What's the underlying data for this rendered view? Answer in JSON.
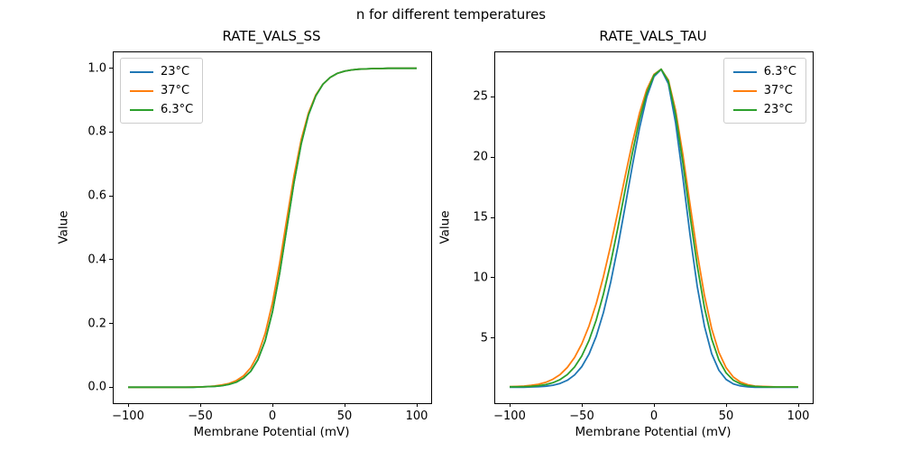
{
  "figure": {
    "suptitle": "n for different temperatures",
    "background": "#ffffff",
    "text_color": "#000000",
    "spine_color": "#000000"
  },
  "chart_data": [
    {
      "type": "line",
      "title": "RATE_VALS_SS",
      "xlabel": "Membrane Potential (mV)",
      "ylabel": "Value",
      "xlim": [
        -110,
        110
      ],
      "ylim": [
        -0.05,
        1.05
      ],
      "grid": false,
      "legend_position": "upper-left",
      "xticks": [
        -100,
        -50,
        0,
        50,
        100
      ],
      "xtick_labels": [
        "−100",
        "−50",
        "0",
        "50",
        "100"
      ],
      "yticks": [
        0.0,
        0.2,
        0.4,
        0.6,
        0.8,
        1.0
      ],
      "ytick_labels": [
        "0.0",
        "0.2",
        "0.4",
        "0.6",
        "0.8",
        "1.0"
      ],
      "x": [
        -100,
        -95,
        -90,
        -85,
        -80,
        -75,
        -70,
        -65,
        -60,
        -55,
        -50,
        -45,
        -40,
        -35,
        -30,
        -25,
        -20,
        -15,
        -10,
        -5,
        0,
        5,
        10,
        15,
        20,
        25,
        30,
        35,
        40,
        45,
        50,
        55,
        60,
        65,
        70,
        75,
        80,
        85,
        90,
        95,
        100
      ],
      "series": [
        {
          "name": "23°C",
          "color": "#1f77b4",
          "values": [
            0,
            0,
            0,
            0,
            0,
            0,
            0,
            0,
            0,
            0,
            0.001,
            0.002,
            0.003,
            0.005,
            0.009,
            0.016,
            0.029,
            0.05,
            0.087,
            0.146,
            0.236,
            0.357,
            0.5,
            0.643,
            0.764,
            0.854,
            0.913,
            0.95,
            0.971,
            0.984,
            0.991,
            0.995,
            0.997,
            0.998,
            0.999,
            0.999,
            1,
            1,
            1,
            1,
            1
          ]
        },
        {
          "name": "37°C",
          "color": "#ff7f0e",
          "values": [
            0,
            0,
            0,
            0,
            0,
            0,
            0,
            0,
            0,
            0.001,
            0.001,
            0.002,
            0.004,
            0.007,
            0.012,
            0.021,
            0.036,
            0.061,
            0.103,
            0.169,
            0.264,
            0.388,
            0.528,
            0.664,
            0.777,
            0.86,
            0.916,
            0.95,
            0.971,
            0.984,
            0.991,
            0.995,
            0.997,
            0.998,
            0.999,
            0.999,
            1,
            1,
            1,
            1,
            1
          ]
        },
        {
          "name": "6.3°C",
          "color": "#2ca02c",
          "values": [
            0,
            0,
            0,
            0,
            0,
            0,
            0,
            0,
            0,
            0,
            0.001,
            0.002,
            0.003,
            0.005,
            0.009,
            0.016,
            0.029,
            0.05,
            0.087,
            0.146,
            0.236,
            0.357,
            0.5,
            0.643,
            0.764,
            0.854,
            0.913,
            0.95,
            0.971,
            0.984,
            0.991,
            0.995,
            0.997,
            0.998,
            0.999,
            0.999,
            1,
            1,
            1,
            1,
            1
          ]
        }
      ]
    },
    {
      "type": "line",
      "title": "RATE_VALS_TAU",
      "xlabel": "Membrane Potential (mV)",
      "ylabel": "Value",
      "xlim": [
        -110,
        110
      ],
      "ylim": [
        -0.4,
        28.7
      ],
      "grid": false,
      "legend_position": "upper-right",
      "xticks": [
        -100,
        -50,
        0,
        50,
        100
      ],
      "xtick_labels": [
        "−100",
        "−50",
        "0",
        "50",
        "100"
      ],
      "yticks": [
        5,
        10,
        15,
        20,
        25
      ],
      "ytick_labels": [
        "5",
        "10",
        "15",
        "20",
        "25"
      ],
      "x": [
        -100,
        -95,
        -90,
        -85,
        -80,
        -75,
        -70,
        -65,
        -60,
        -55,
        -50,
        -45,
        -40,
        -35,
        -30,
        -25,
        -20,
        -15,
        -10,
        -5,
        0,
        5,
        10,
        15,
        20,
        25,
        30,
        35,
        40,
        45,
        50,
        55,
        60,
        65,
        70,
        75,
        80,
        85,
        90,
        95,
        100
      ],
      "series": [
        {
          "name": "6.3°C",
          "color": "#1f77b4",
          "values": [
            0.92,
            0.92,
            0.92,
            0.95,
            0.97,
            1.01,
            1.09,
            1.24,
            1.5,
            1.94,
            2.63,
            3.67,
            5.14,
            7.12,
            9.62,
            12.59,
            15.89,
            19.27,
            22.42,
            25.0,
            26.69,
            27.28,
            26.1,
            22.85,
            18.36,
            13.57,
            9.29,
            5.98,
            3.71,
            2.33,
            1.57,
            1.2,
            1.03,
            0.96,
            0.92,
            0.92,
            0.92,
            0.92,
            0.92,
            0.92,
            0.92
          ]
        },
        {
          "name": "37°C",
          "color": "#ff7f0e",
          "values": [
            0.97,
            0.99,
            1.02,
            1.08,
            1.17,
            1.33,
            1.59,
            1.98,
            2.57,
            3.39,
            4.52,
            6.0,
            7.86,
            10.1,
            12.67,
            15.48,
            18.39,
            21.19,
            23.66,
            25.61,
            26.87,
            27.3,
            26.4,
            23.89,
            20.25,
            16.09,
            12.04,
            8.53,
            5.78,
            3.82,
            2.54,
            1.77,
            1.35,
            1.13,
            1.02,
            0.99,
            0.97,
            0.95,
            0.95,
            0.95,
            0.95
          ]
        },
        {
          "name": "23°C",
          "color": "#2ca02c",
          "values": [
            0.96,
            0.96,
            0.98,
            1.0,
            1.05,
            1.14,
            1.3,
            1.56,
            1.97,
            2.6,
            3.52,
            4.8,
            6.5,
            8.65,
            11.22,
            14.14,
            17.25,
            20.32,
            23.11,
            25.35,
            26.8,
            27.3,
            26.3,
            23.53,
            19.57,
            15.17,
            10.99,
            7.52,
            4.93,
            3.18,
            2.11,
            1.51,
            1.2,
            1.05,
            0.99,
            0.96,
            0.95,
            0.95,
            0.95,
            0.95,
            0.95
          ]
        }
      ]
    }
  ]
}
